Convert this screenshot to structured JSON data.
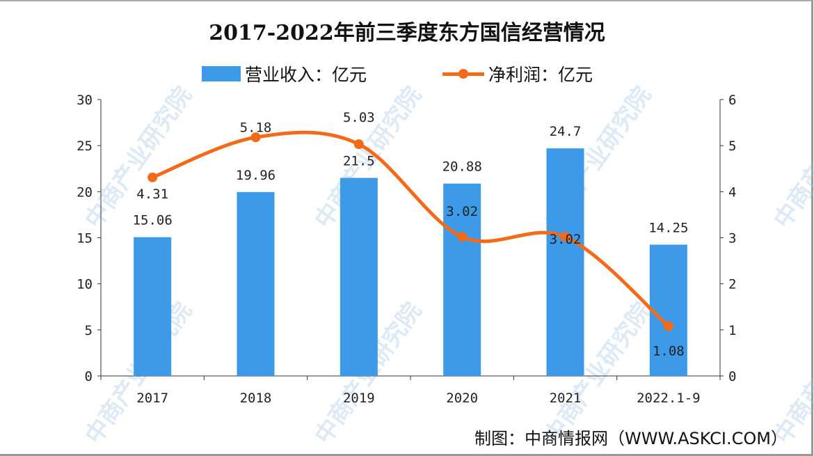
{
  "watermark": "中商产业研究院",
  "source": "制图：中商情报网（WWW.ASKCI.COM）",
  "chart_data": {
    "type": "bar",
    "title": "2017-2022年前三季度东方国信经营情况",
    "categories": [
      "2017",
      "2018",
      "2019",
      "2020",
      "2021",
      "2022.1-9"
    ],
    "series": [
      {
        "name": "营业收入：亿元",
        "type": "bar",
        "axis": "left",
        "color": "#3d9ae8",
        "values": [
          15.06,
          19.96,
          21.5,
          20.88,
          24.7,
          14.25
        ]
      },
      {
        "name": "净利润：亿元",
        "type": "line",
        "smooth": true,
        "axis": "right",
        "color": "#f36b1a",
        "values": [
          4.31,
          5.18,
          5.03,
          3.02,
          3.02,
          1.08
        ]
      }
    ],
    "ylim": [
      0,
      30
    ],
    "yticks": [
      0,
      5,
      10,
      15,
      20,
      25,
      30
    ],
    "y2lim": [
      0,
      6
    ],
    "y2ticks": [
      0,
      1,
      2,
      3,
      4,
      5,
      6
    ],
    "grid": false,
    "legend": "top"
  }
}
